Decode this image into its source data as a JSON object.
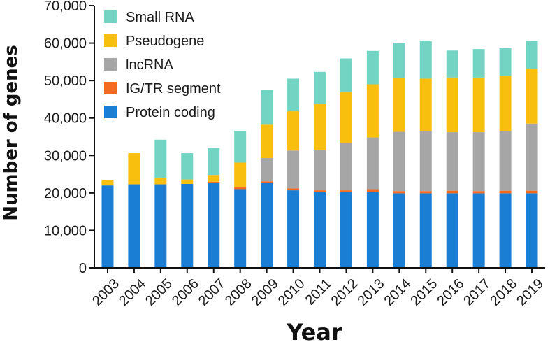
{
  "chart_data": {
    "type": "bar",
    "stacked": true,
    "title": "",
    "xlabel": "Year",
    "ylabel": "Number of genes",
    "ylim": [
      0,
      70000
    ],
    "y_ticks": [
      "0",
      "10,000",
      "20,000",
      "30,000",
      "40,000",
      "50,000",
      "60,000",
      "70,000"
    ],
    "grid": false,
    "legend_placement": "top-left",
    "categories": [
      "2003",
      "2004",
      "2005",
      "2006",
      "2007",
      "2008",
      "2009",
      "2010",
      "2011",
      "2012",
      "2013",
      "2014",
      "2015",
      "2016",
      "2017",
      "2018",
      "2019"
    ],
    "series": [
      {
        "name": "Protein coding",
        "color": "#1a7fd4",
        "values": [
          22000,
          22300,
          22300,
          22400,
          22600,
          21000,
          22700,
          20700,
          20200,
          20200,
          20300,
          19900,
          19900,
          19900,
          19900,
          19900,
          19900
        ]
      },
      {
        "name": "IG/TR segment",
        "color": "#f26b21",
        "values": [
          0,
          0,
          0,
          0,
          400,
          500,
          400,
          500,
          500,
          500,
          700,
          600,
          600,
          700,
          600,
          700,
          700
        ]
      },
      {
        "name": "lncRNA",
        "color": "#a6a6a6",
        "values": [
          0,
          0,
          0,
          0,
          0,
          0,
          6200,
          10100,
          10700,
          12700,
          13800,
          15800,
          16000,
          15600,
          15700,
          15900,
          17900
        ]
      },
      {
        "name": "Pseudogene",
        "color": "#f8bf0f",
        "values": [
          1500,
          8300,
          1800,
          1200,
          1800,
          6600,
          8900,
          10500,
          12300,
          13500,
          14200,
          14300,
          14000,
          14600,
          14600,
          14700,
          14700
        ]
      },
      {
        "name": "Small RNA",
        "color": "#73d4c4",
        "values": [
          0,
          0,
          10100,
          7000,
          7200,
          8500,
          9300,
          8700,
          8600,
          9000,
          8900,
          9500,
          10000,
          7200,
          7600,
          7600,
          7400
        ]
      }
    ],
    "legend_order": [
      "Small RNA",
      "Pseudogene",
      "lncRNA",
      "IG/TR segment",
      "Protein coding"
    ],
    "legend_labels": [
      "Small RNA",
      "Pseudogene",
      "lncRNA",
      "IG/TR segment",
      "Protein coding"
    ]
  }
}
